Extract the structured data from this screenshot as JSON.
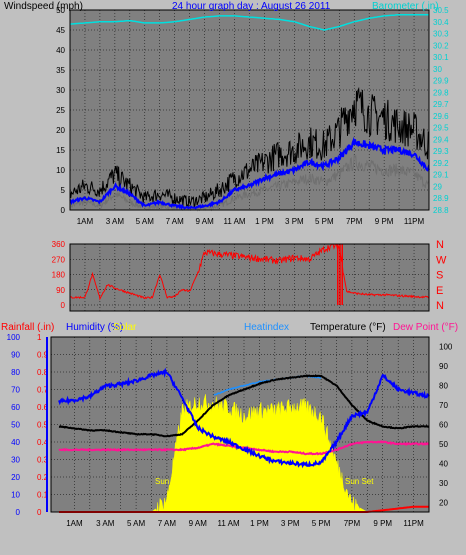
{
  "header": {
    "left_title": "Windspeed (mph)",
    "center_title": "24 hour graph day : August 26 2011",
    "right_title": "Barometer (.in)"
  },
  "colors": {
    "plot_bg": "#808080",
    "grid": "#000000",
    "barometer": "#00e0e0",
    "wind_gust": "#000000",
    "wind_avg": "#0000ff",
    "wind_speed": "#707070",
    "direction": "#ff0000",
    "humidity": "#0000ff",
    "heatindex": "#1e90ff",
    "temperature": "#000000",
    "dewpoint": "#ff1493",
    "solar": "#ffff00",
    "rainfall": "#ff0000"
  },
  "time_ticks": [
    "1AM",
    "3 AM",
    "5 AM",
    "7 AM",
    "9 AM",
    "11 AM",
    "1 PM",
    "3 PM",
    "5 PM",
    "7PM",
    "9 PM",
    "11PM"
  ],
  "chart_data": [
    {
      "type": "line",
      "title": "24 hour graph day : August 26 2011",
      "xlabel": "",
      "ylabel": "Windspeed (mph)",
      "y2label": "Barometer (.in)",
      "ylim": [
        0,
        50
      ],
      "y2lim": [
        28.8,
        30.5
      ],
      "yticks": [
        "0",
        "5",
        "10",
        "15",
        "20",
        "25",
        "30",
        "35",
        "40",
        "45",
        "50"
      ],
      "y2ticks": [
        "28.8",
        "28.9",
        "29",
        "29.1",
        "29.2",
        "29.3",
        "29.4",
        "29.5",
        "29.6",
        "29.7",
        "29.8",
        "29.9",
        "30",
        "30.1",
        "30.2",
        "30.3",
        "30.4",
        "30.5"
      ],
      "x_hours": [
        0,
        1,
        2,
        3,
        4,
        5,
        6,
        7,
        8,
        9,
        10,
        11,
        12,
        13,
        14,
        15,
        16,
        17,
        18,
        19,
        20,
        21,
        22,
        23,
        24
      ],
      "series": [
        {
          "name": "Barometer",
          "axis": "right",
          "values": [
            30.38,
            30.39,
            30.4,
            30.4,
            30.41,
            30.39,
            30.39,
            30.4,
            30.42,
            30.44,
            30.45,
            30.45,
            30.44,
            30.43,
            30.42,
            30.4,
            30.36,
            30.33,
            30.36,
            30.4,
            30.43,
            30.45,
            30.46,
            30.46,
            30.46
          ]
        },
        {
          "axis": "left",
          "values": [
            4,
            6,
            5,
            9,
            6,
            3,
            4,
            3,
            2,
            3,
            5,
            8,
            10,
            12,
            14,
            15,
            17,
            16,
            20,
            27,
            24,
            23,
            21,
            20,
            16
          ]
        },
        {
          "axis": "left",
          "values": [
            2,
            3,
            2,
            6,
            4,
            1,
            2,
            1,
            0.5,
            1,
            2,
            5,
            6,
            8,
            9,
            10,
            12,
            11,
            13,
            17,
            16,
            15,
            15,
            14,
            10
          ]
        },
        {
          "axis": "left",
          "values": [
            1,
            2,
            1,
            4,
            2,
            0.5,
            1,
            0.5,
            0,
            0.5,
            1,
            3,
            4,
            5,
            6,
            7,
            8,
            7,
            9,
            12,
            11,
            10,
            10,
            9,
            6
          ]
        }
      ]
    },
    {
      "type": "line",
      "ylabel": "",
      "ylim": [
        0,
        360
      ],
      "yticks": [
        "0",
        "90",
        "180",
        "270",
        "360"
      ],
      "right_labels": [
        "N",
        "W",
        "S",
        "E",
        "N"
      ],
      "x_hours": [
        0,
        1,
        1.5,
        2,
        2.5,
        3,
        4,
        5,
        5.5,
        6,
        6.5,
        7,
        7.5,
        8,
        8.5,
        9,
        10,
        11,
        12,
        13,
        14,
        15,
        16,
        17,
        17.5,
        18,
        18.5,
        19,
        20,
        21,
        22,
        23,
        24
      ],
      "series": [
        {
          "name": "Wind Direction",
          "values": [
            45,
            45,
            180,
            40,
            120,
            100,
            70,
            40,
            45,
            180,
            45,
            50,
            90,
            80,
            180,
            310,
            300,
            290,
            280,
            270,
            260,
            280,
            270,
            330,
            350,
            340,
            80,
            70,
            60,
            60,
            55,
            50,
            45
          ]
        }
      ]
    },
    {
      "type": "line",
      "legend": [
        "Rainfall (.in)",
        "Humidity (%)",
        "Solar",
        "Heatindex",
        "Temperature (°F)",
        "Dew Point (°F)"
      ],
      "ylabel": "Rainfall (.in)",
      "ylim": [
        0,
        1
      ],
      "yticks": [
        "0",
        "0.1",
        "0.2",
        "0.3",
        "0.4",
        "0.5",
        "0.6",
        "0.7",
        "0.8",
        "0.9",
        "1"
      ],
      "y1ticks": [
        "0",
        "10",
        "20",
        "30",
        "40",
        "50",
        "60",
        "70",
        "80",
        "90",
        "100"
      ],
      "y2lim": [
        15,
        105
      ],
      "y2ticks": [
        "20",
        "30",
        "40",
        "50",
        "60",
        "70",
        "80",
        "90",
        "100"
      ],
      "annotations": [
        "Sun Rise",
        "Sun Set"
      ],
      "x_hours": [
        0,
        1,
        2,
        3,
        4,
        5,
        6,
        7,
        8,
        9,
        10,
        11,
        12,
        13,
        14,
        15,
        16,
        17,
        18,
        19,
        20,
        21,
        22,
        23,
        24
      ],
      "series": [
        {
          "name": "Humidity",
          "axis": "pct",
          "values": [
            63,
            64,
            66,
            72,
            73,
            75,
            78,
            80,
            65,
            48,
            43,
            40,
            36,
            32,
            29,
            28,
            27,
            28,
            40,
            55,
            57,
            78,
            70,
            68,
            66
          ]
        },
        {
          "name": "Heatindex",
          "axis": "temp",
          "values": [
            null,
            null,
            null,
            null,
            null,
            null,
            null,
            null,
            null,
            null,
            75,
            78,
            80,
            82,
            83,
            84,
            85,
            84,
            null,
            null,
            null,
            null,
            null,
            null,
            null
          ]
        },
        {
          "name": "Temperature",
          "axis": "temp",
          "values": [
            59,
            58,
            57,
            57,
            56,
            55,
            55,
            54,
            55,
            62,
            70,
            75,
            78,
            81,
            83,
            84,
            85,
            85,
            80,
            70,
            62,
            59,
            58,
            59,
            59
          ]
        },
        {
          "name": "Dew Point",
          "axis": "temp",
          "values": [
            47,
            47,
            47,
            47,
            47,
            47,
            47,
            47,
            47,
            48,
            50,
            49,
            48,
            47,
            46,
            46,
            45,
            45,
            47,
            50,
            51,
            51,
            50,
            50,
            50
          ]
        },
        {
          "name": "Solar",
          "axis": "pct",
          "values": [
            0,
            0,
            0,
            0,
            0,
            0,
            0,
            7,
            58,
            63,
            62,
            60,
            55,
            58,
            58,
            60,
            60,
            55,
            28,
            5,
            0,
            0,
            0,
            0,
            0
          ]
        },
        {
          "name": "Rainfall",
          "axis": "rain",
          "values": [
            0,
            0,
            0,
            0,
            0,
            0,
            0,
            0,
            0,
            0,
            0,
            0,
            0,
            0,
            0,
            0,
            0,
            0,
            0,
            0,
            0,
            0.01,
            0.02,
            0.03,
            0.03
          ]
        }
      ]
    }
  ]
}
